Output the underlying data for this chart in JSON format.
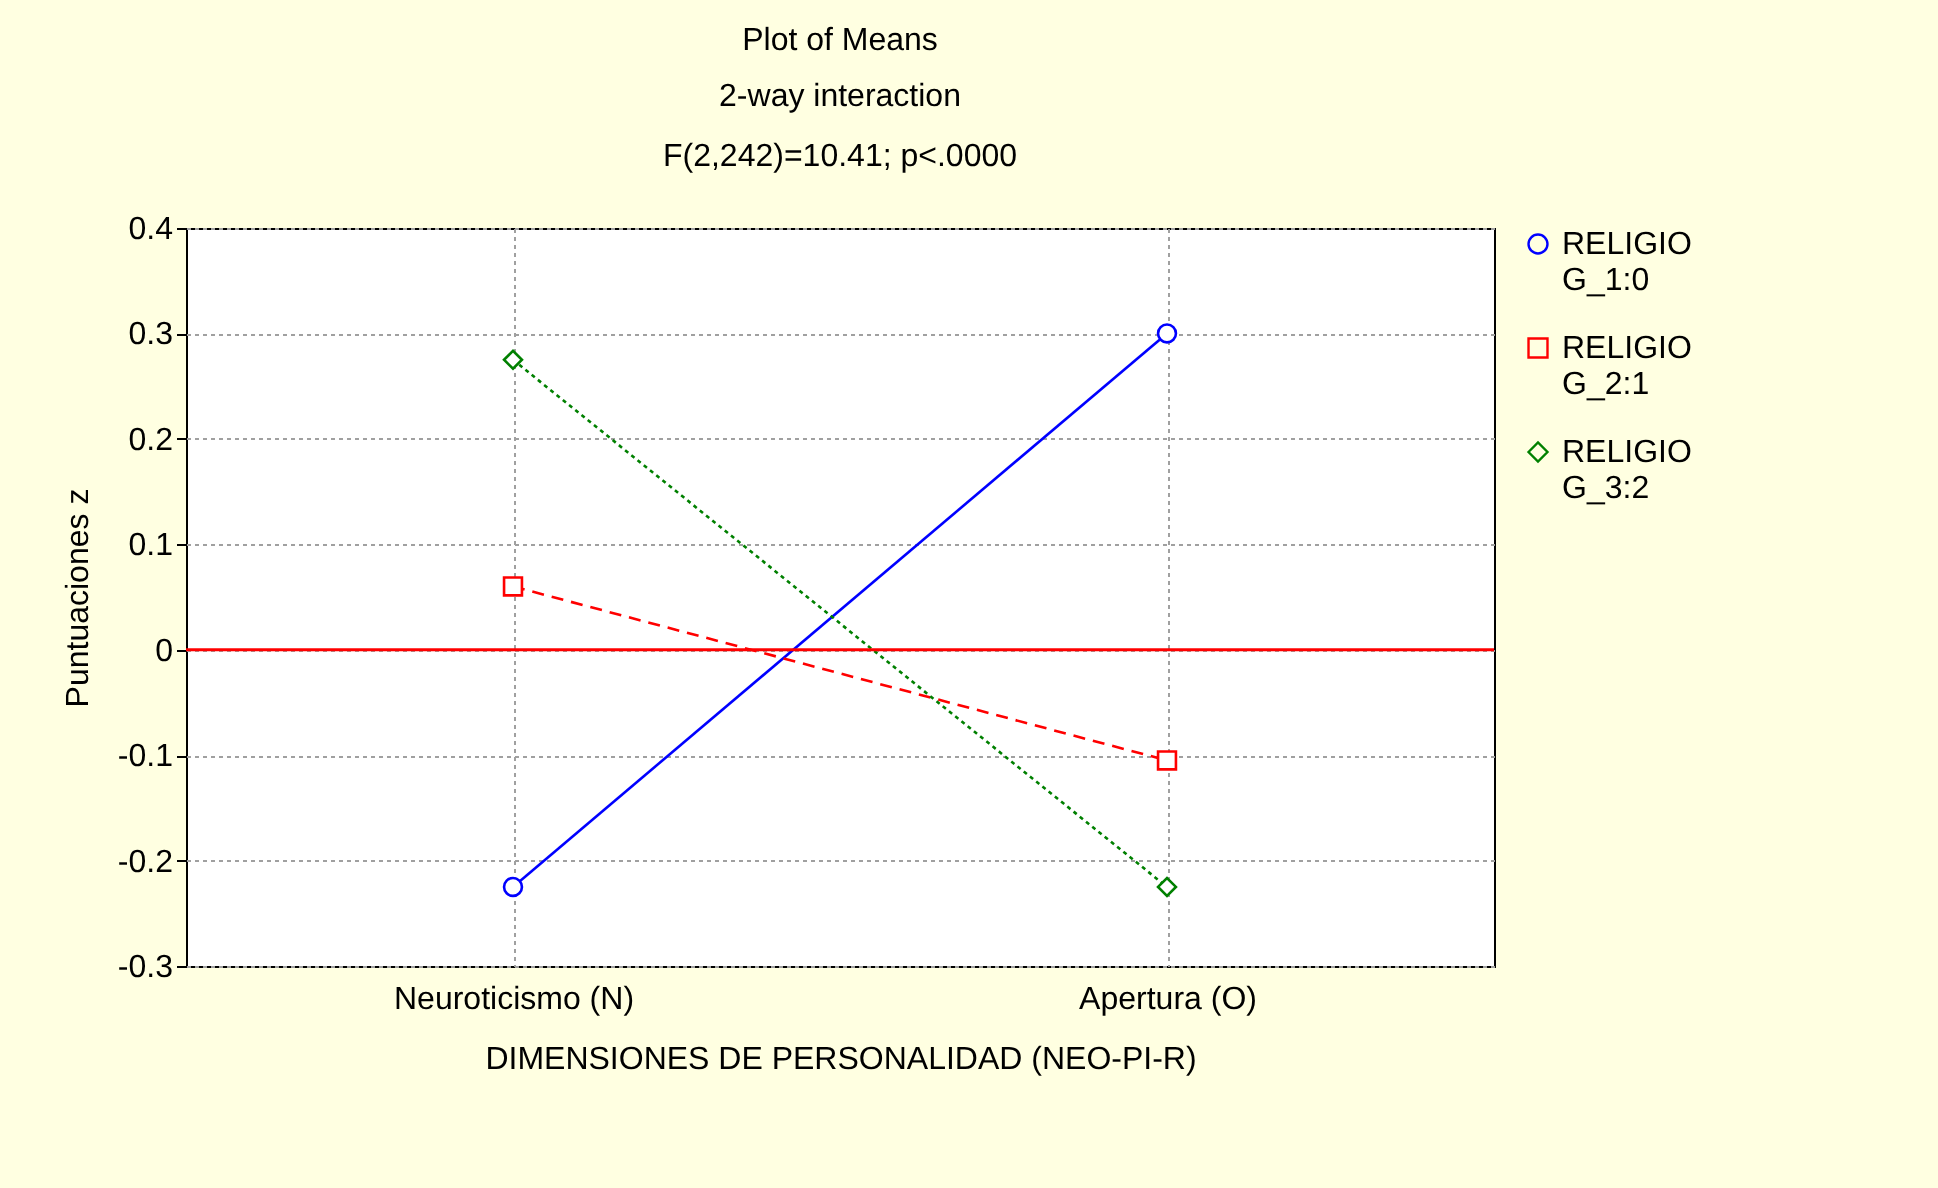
{
  "chart_data": {
    "type": "line",
    "title": "Plot of Means",
    "subtitle": "2-way interaction",
    "annotations": [
      "F(2,242)=10.41; p<.0000"
    ],
    "xlabel": "DIMENSIONES DE PERSONALIDAD (NEO-PI-R)",
    "ylabel": "Puntuaciones z",
    "categories": [
      "Neuroticismo (N)",
      "Apertura (O)"
    ],
    "series": [
      {
        "name": "RELIGIO G_1:0",
        "color": "#0000ff",
        "values": [
          -0.225,
          0.3
        ],
        "marker": "circle",
        "line_style": "solid"
      },
      {
        "name": "RELIGIO G_2:1",
        "color": "#ff0000",
        "values": [
          0.06,
          -0.105
        ],
        "marker": "square",
        "line_style": "dashed"
      },
      {
        "name": "RELIGIO G_3:2",
        "color": "#008000",
        "values": [
          0.275,
          -0.225
        ],
        "marker": "diamond",
        "line_style": "dotted"
      }
    ],
    "ylim": [
      -0.3,
      0.4
    ],
    "yticks": [
      -0.3,
      -0.2,
      -0.1,
      0,
      0.1,
      0.2,
      0.3,
      0.4
    ],
    "grid": true,
    "legend": "right",
    "ref_lines": [
      {
        "axis": "y",
        "value": 0,
        "color": "#ff0000"
      }
    ]
  }
}
